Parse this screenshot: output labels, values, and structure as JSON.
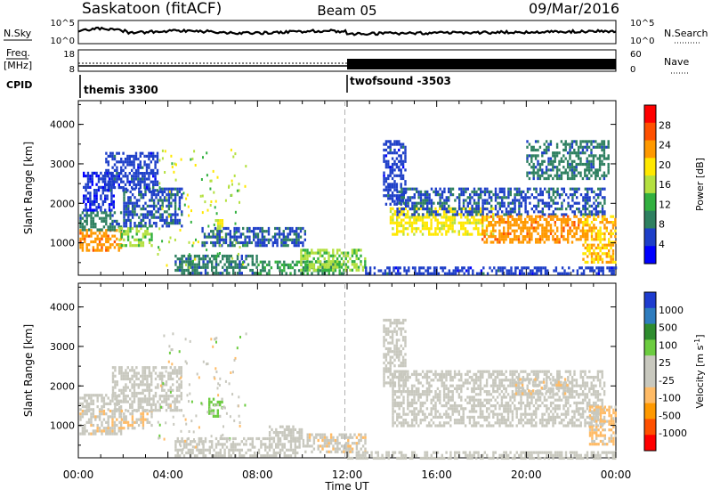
{
  "header": {
    "station": "Saskatoon (fitACF)",
    "beam": "Beam 05",
    "date": "09/Mar/2016"
  },
  "top_strip": {
    "nsky_label": "N.Sky",
    "nsky_ticks": [
      "10^5",
      "10^0"
    ],
    "nsearch_label": "N.Search",
    "nsearch_ticks": [
      "10^5",
      "10^0"
    ],
    "freq_label": "Freq.",
    "freq_unit": "[MHz]",
    "freq_ticks": [
      "18",
      "8"
    ],
    "nave_label": "Nave",
    "nave_ticks": [
      "60",
      "0"
    ],
    "cpid_label": "CPID",
    "cpid_segments": [
      {
        "name": "themis 3300",
        "start_hour": 0.0,
        "end_hour": 11.9
      },
      {
        "name": "twofsound -3503",
        "start_hour": 11.9,
        "end_hour": 24.0
      }
    ]
  },
  "x_axis": {
    "label": "Time UT",
    "ticks": [
      "00:00",
      "04:00",
      "08:00",
      "12:00",
      "16:00",
      "20:00",
      "00:00"
    ],
    "range_hours": [
      0,
      24
    ]
  },
  "chart_data": [
    {
      "type": "heatmap",
      "name": "power_panel",
      "ylabel": "Slant Range [km]",
      "yticks": [
        "1000",
        "2000",
        "3000",
        "4000"
      ],
      "ylim": [
        180,
        4600
      ],
      "x_unit": "hours UT",
      "colorbar": {
        "label": "Power [dB]",
        "ticks": [
          "28",
          "24",
          "20",
          "16",
          "12",
          "8",
          "4"
        ],
        "range": [
          0,
          30
        ],
        "colors": [
          "#0000ff",
          "#1e3fc8",
          "#2e8060",
          "#32b040",
          "#b4e040",
          "#ffe800",
          "#ff9900",
          "#ff5000",
          "#ff0000"
        ]
      },
      "regions": [
        {
          "x": [
            0.05,
            1.9
          ],
          "range_km": [
            800,
            1350
          ],
          "level": 22
        },
        {
          "x": [
            0.05,
            1.9
          ],
          "range_km": [
            1350,
            1800
          ],
          "level": 8
        },
        {
          "x": [
            0.2,
            1.6
          ],
          "range_km": [
            1800,
            2800
          ],
          "level": 4
        },
        {
          "x": [
            1.8,
            3.3
          ],
          "range_km": [
            900,
            1400
          ],
          "level": 14
        },
        {
          "x": [
            2.0,
            4.6
          ],
          "range_km": [
            1400,
            2400
          ],
          "level": 6
        },
        {
          "x": [
            1.2,
            3.5
          ],
          "range_km": [
            2300,
            3300
          ],
          "level": 5
        },
        {
          "x": [
            6.1,
            6.4
          ],
          "range_km": [
            1100,
            1600
          ],
          "level": 16
        },
        {
          "x": [
            5.5,
            10.1
          ],
          "range_km": [
            900,
            1400
          ],
          "level": 6
        },
        {
          "x": [
            4.3,
            8.0
          ],
          "range_km": [
            200,
            700
          ],
          "level": 8
        },
        {
          "x": [
            8.0,
            12.0
          ],
          "range_km": [
            250,
            550
          ],
          "level": 10
        },
        {
          "x": [
            9.9,
            12.8
          ],
          "range_km": [
            300,
            850
          ],
          "level": 14
        },
        {
          "x": [
            12.8,
            24.0
          ],
          "range_km": [
            200,
            400
          ],
          "level": 5
        },
        {
          "x": [
            13.6,
            14.6
          ],
          "range_km": [
            2000,
            3600
          ],
          "level": 5
        },
        {
          "x": [
            13.9,
            18.5
          ],
          "range_km": [
            1200,
            1900
          ],
          "level": 18
        },
        {
          "x": [
            14.2,
            23.5
          ],
          "range_km": [
            1700,
            2400
          ],
          "level": 6
        },
        {
          "x": [
            18.0,
            22.5
          ],
          "range_km": [
            1000,
            1700
          ],
          "level": 22
        },
        {
          "x": [
            22.5,
            24.0
          ],
          "range_km": [
            500,
            1700
          ],
          "level": 20
        },
        {
          "x": [
            20.0,
            23.7
          ],
          "range_km": [
            2600,
            3600
          ],
          "level": 8
        }
      ]
    },
    {
      "type": "heatmap",
      "name": "velocity_panel",
      "ylabel": "Slant Range [km]",
      "yticks": [
        "1000",
        "2000",
        "3000",
        "4000"
      ],
      "ylim": [
        180,
        4600
      ],
      "x_unit": "hours UT",
      "colorbar": {
        "label": "Velocity [m s",
        "label_sup": "-1",
        "label_close": "]",
        "ticks": [
          "1000",
          "500",
          "100",
          "25",
          "-25",
          "-100",
          "-500",
          "-1000"
        ],
        "range": [
          -1200,
          1200
        ],
        "colors": [
          "#ff0000",
          "#ff5000",
          "#ff9900",
          "#ffbb66",
          "#c8c8be",
          "#c8c8be",
          "#6ccc40",
          "#2e8c2e",
          "#2e7cbe",
          "#1e3ccf"
        ]
      },
      "regions": [
        {
          "x": [
            0.05,
            1.9
          ],
          "range_km": [
            800,
            1400
          ],
          "level": -150
        },
        {
          "x": [
            0.05,
            1.9
          ],
          "range_km": [
            1400,
            1800
          ],
          "level": 0
        },
        {
          "x": [
            1.8,
            3.3
          ],
          "range_km": [
            900,
            1400
          ],
          "level": -200
        },
        {
          "x": [
            1.5,
            4.6
          ],
          "range_km": [
            1400,
            2500
          ],
          "level": 0
        },
        {
          "x": [
            4.3,
            9.9
          ],
          "range_km": [
            250,
            700
          ],
          "level": 50
        },
        {
          "x": [
            5.8,
            6.4
          ],
          "range_km": [
            1200,
            1700
          ],
          "level": 300
        },
        {
          "x": [
            8.5,
            10.0
          ],
          "range_km": [
            600,
            1000
          ],
          "level": 0
        },
        {
          "x": [
            10.0,
            12.8
          ],
          "range_km": [
            300,
            800
          ],
          "level": -150
        },
        {
          "x": [
            12.0,
            24.0
          ],
          "range_km": [
            200,
            350
          ],
          "level": 50
        },
        {
          "x": [
            13.6,
            14.6
          ],
          "range_km": [
            2000,
            3700
          ],
          "level": 0
        },
        {
          "x": [
            14.0,
            23.5
          ],
          "range_km": [
            1000,
            2400
          ],
          "level": 0
        },
        {
          "x": [
            19.5,
            22.0
          ],
          "range_km": [
            1800,
            2200
          ],
          "level": -150
        },
        {
          "x": [
            22.8,
            24.0
          ],
          "range_km": [
            500,
            1500
          ],
          "level": -300
        }
      ]
    }
  ]
}
